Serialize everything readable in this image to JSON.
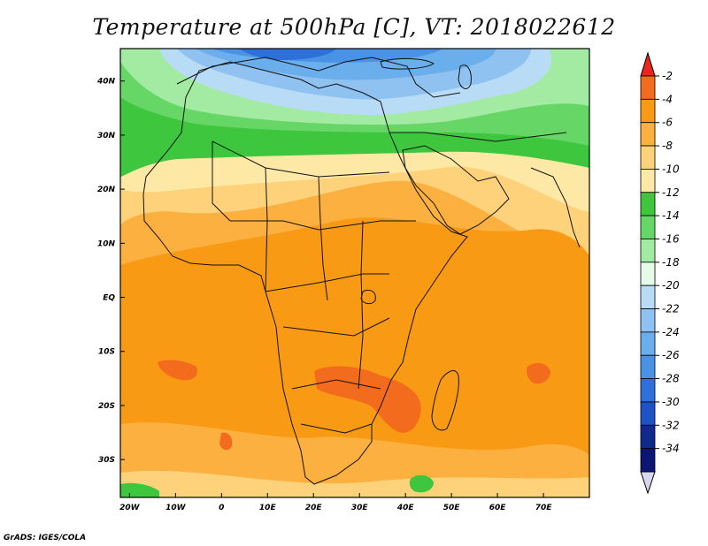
{
  "title": "Temperature at 500hPa [C], VT: 2018022612",
  "footer": "GrADS: IGES/COLA",
  "map": {
    "lon_range": [
      -22,
      80
    ],
    "lat_range": [
      -37,
      46
    ],
    "lon_ticks": [
      {
        "value": -20,
        "label": "20W"
      },
      {
        "value": -10,
        "label": "10W"
      },
      {
        "value": 0,
        "label": "0"
      },
      {
        "value": 10,
        "label": "10E"
      },
      {
        "value": 20,
        "label": "20E"
      },
      {
        "value": 30,
        "label": "30E"
      },
      {
        "value": 40,
        "label": "40E"
      },
      {
        "value": 50,
        "label": "50E"
      },
      {
        "value": 60,
        "label": "60E"
      },
      {
        "value": 70,
        "label": "70E"
      }
    ],
    "lat_ticks": [
      {
        "value": 40,
        "label": "40N"
      },
      {
        "value": 30,
        "label": "30N"
      },
      {
        "value": 20,
        "label": "20N"
      },
      {
        "value": 10,
        "label": "10N"
      },
      {
        "value": 0,
        "label": "EQ"
      },
      {
        "value": -10,
        "label": "10S"
      },
      {
        "value": -20,
        "label": "20S"
      },
      {
        "value": -30,
        "label": "30S"
      }
    ]
  },
  "colorbar": {
    "levels": [
      {
        "label": "-2",
        "color": "#f36b1d"
      },
      {
        "label": "-4",
        "color": "#f99a14"
      },
      {
        "label": "-6",
        "color": "#fbb040"
      },
      {
        "label": "-8",
        "color": "#fdd27a"
      },
      {
        "label": "-10",
        "color": "#fee8a6"
      },
      {
        "label": "-12",
        "color": "#3fc63f"
      },
      {
        "label": "-14",
        "color": "#66d766"
      },
      {
        "label": "-16",
        "color": "#a3eaa3"
      },
      {
        "label": "-18",
        "color": "#e5fbe9"
      },
      {
        "label": "-20",
        "color": "#b9dcf6"
      },
      {
        "label": "-22",
        "color": "#8fc2f0"
      },
      {
        "label": "-24",
        "color": "#6aaeec"
      },
      {
        "label": "-26",
        "color": "#4a92e6"
      },
      {
        "label": "-28",
        "color": "#2e6fd9"
      },
      {
        "label": "-30",
        "color": "#1e53c4"
      },
      {
        "label": "-32",
        "color": "#0f2a8c"
      },
      {
        "label": "-34",
        "color": "#0d1673"
      }
    ],
    "top_arrow_color": "#e8261c",
    "bottom_arrow_color": "#d9d6f2"
  }
}
